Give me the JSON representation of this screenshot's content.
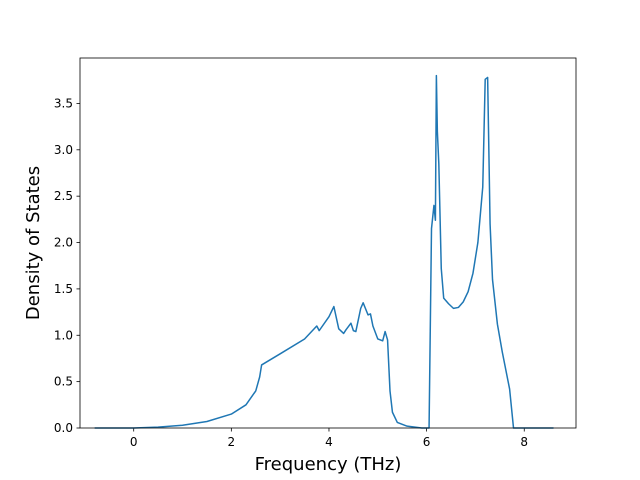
{
  "chart_data": {
    "type": "line",
    "title": "",
    "xlabel": "Frequency (THz)",
    "ylabel": "Density of States",
    "xlim": [
      -1.1,
      9.06
    ],
    "ylim": [
      0,
      3.99
    ],
    "xticks": [
      0,
      2,
      4,
      6,
      8
    ],
    "yticks": [
      0.0,
      0.5,
      1.0,
      1.5,
      2.0,
      2.5,
      3.0,
      3.5
    ],
    "xtick_labels": [
      "0",
      "2",
      "4",
      "6",
      "8"
    ],
    "ytick_labels": [
      "0.0",
      "0.5",
      "1.0",
      "1.5",
      "2.0",
      "2.5",
      "3.0",
      "3.5"
    ],
    "grid": false,
    "line_color": "#1f77b4",
    "series": [
      {
        "x": [
          -0.8,
          0.0,
          0.5,
          1.0,
          1.5,
          2.0,
          2.3,
          2.5,
          2.58,
          2.62,
          3.0,
          3.5,
          3.75,
          3.8,
          4.0,
          4.1,
          4.2,
          4.3,
          4.35,
          4.45,
          4.5,
          4.55,
          4.65,
          4.7,
          4.8,
          4.85,
          4.9,
          5.0,
          5.1,
          5.15,
          5.2,
          5.25,
          5.3,
          5.4,
          5.6,
          5.9,
          6.05,
          6.1,
          6.15,
          6.18,
          6.2,
          6.22,
          6.25,
          6.3,
          6.35,
          6.45,
          6.55,
          6.65,
          6.75,
          6.85,
          6.95,
          7.05,
          7.15,
          7.2,
          7.25,
          7.3,
          7.35,
          7.45,
          7.55,
          7.7,
          7.78,
          7.82,
          8.0,
          8.6
        ],
        "y": [
          0.0,
          0.0,
          0.01,
          0.03,
          0.07,
          0.15,
          0.25,
          0.4,
          0.55,
          0.68,
          0.8,
          0.96,
          1.1,
          1.05,
          1.2,
          1.31,
          1.07,
          1.02,
          1.06,
          1.13,
          1.05,
          1.04,
          1.29,
          1.35,
          1.22,
          1.23,
          1.1,
          0.96,
          0.94,
          1.04,
          0.95,
          0.4,
          0.17,
          0.06,
          0.02,
          0.0,
          0.0,
          2.15,
          2.4,
          2.24,
          3.8,
          3.2,
          2.85,
          1.72,
          1.4,
          1.34,
          1.29,
          1.3,
          1.36,
          1.47,
          1.67,
          2.0,
          2.6,
          3.76,
          3.78,
          2.2,
          1.6,
          1.12,
          0.82,
          0.42,
          0.0,
          0.0,
          0.0,
          0.0
        ]
      }
    ]
  }
}
